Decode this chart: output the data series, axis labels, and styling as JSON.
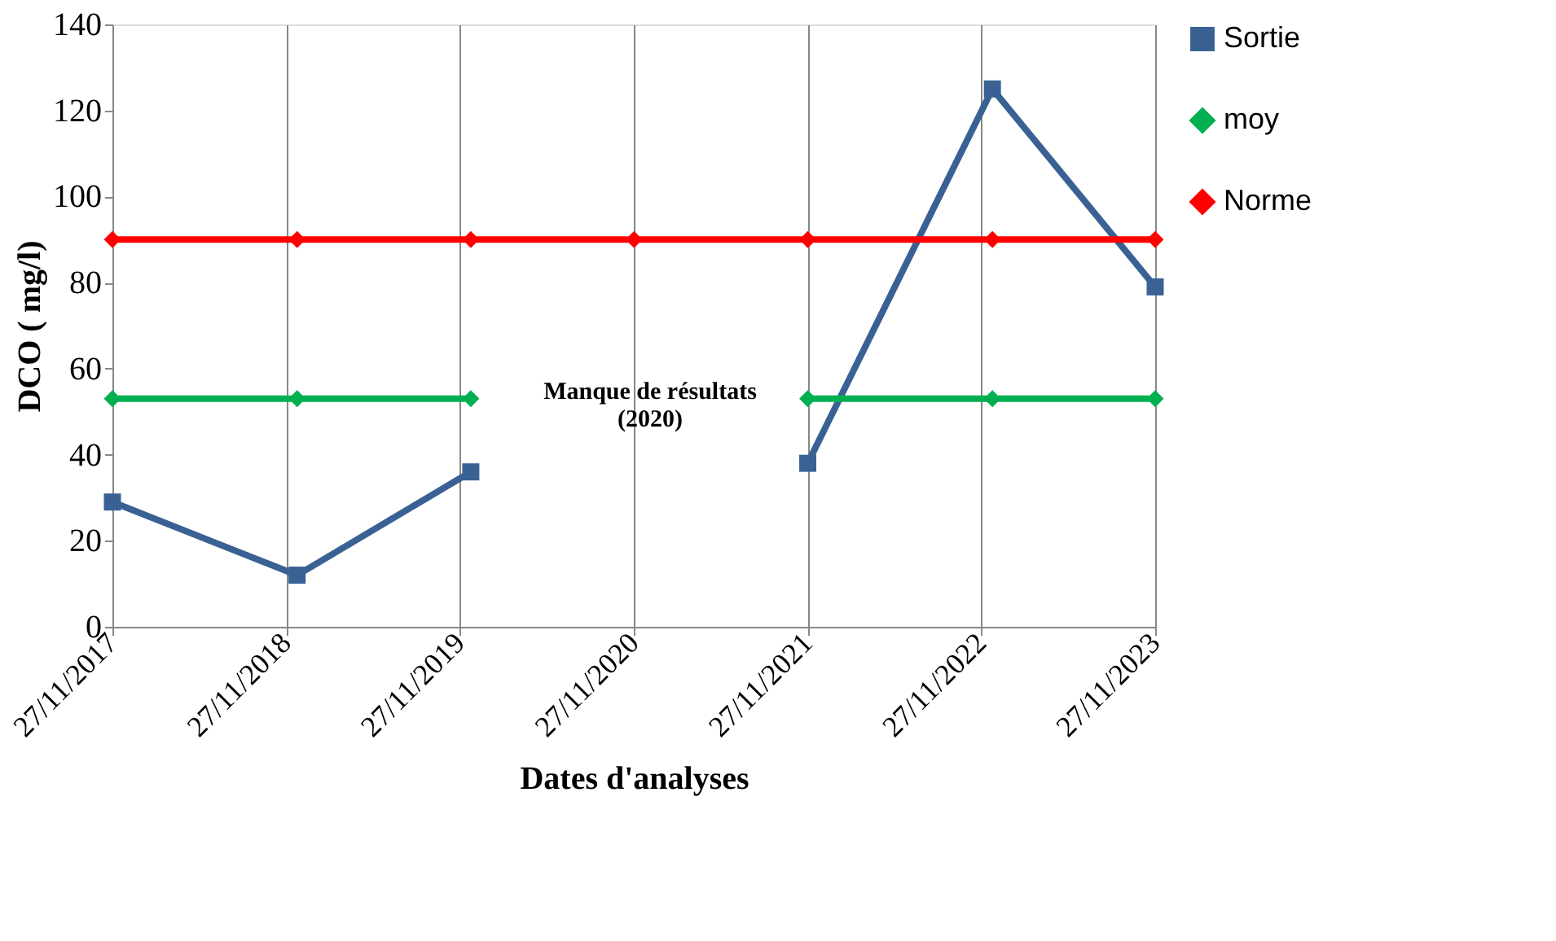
{
  "chart_data": {
    "type": "line",
    "xlabel": "Dates d'analyses",
    "ylabel": "DCO ( mg/l)",
    "x": [
      "2017-11-27",
      "2018-12-20",
      "2019-12-20",
      "2020-11-27",
      "2021-11-27",
      "2022-12-20",
      "2023-11-27"
    ],
    "series": [
      {
        "name": "Sortie",
        "color": "#3a6194",
        "marker": "square",
        "values": [
          29,
          12,
          36,
          null,
          38,
          125,
          79
        ]
      },
      {
        "name": "moy",
        "color": "#00b050",
        "marker": "diamond",
        "values": [
          53,
          53,
          53,
          null,
          53,
          53,
          53
        ]
      },
      {
        "name": "Norme",
        "color": "#ff0000",
        "marker": "diamond",
        "values": [
          90,
          90,
          90,
          90,
          90,
          90,
          90
        ]
      }
    ],
    "xlim": [
      "2017-11-27",
      "2023-11-27"
    ],
    "xticks": [
      {
        "value": "2017-11-27",
        "label": "27/11/2017"
      },
      {
        "value": "2018-11-27",
        "label": "27/11/2018"
      },
      {
        "value": "2019-11-27",
        "label": "27/11/2019"
      },
      {
        "value": "2020-11-27",
        "label": "27/11/2020"
      },
      {
        "value": "2021-11-27",
        "label": "27/11/2021"
      },
      {
        "value": "2022-11-27",
        "label": "27/11/2022"
      },
      {
        "value": "2023-11-27",
        "label": "27/11/2023"
      }
    ],
    "ylim": [
      0,
      140
    ],
    "yticks": [
      0,
      20,
      40,
      60,
      80,
      100,
      120,
      140
    ],
    "grid": "x",
    "legend": "right",
    "line_style": "solid",
    "annotations": [
      "Manque de résultats\n(2020)"
    ]
  }
}
